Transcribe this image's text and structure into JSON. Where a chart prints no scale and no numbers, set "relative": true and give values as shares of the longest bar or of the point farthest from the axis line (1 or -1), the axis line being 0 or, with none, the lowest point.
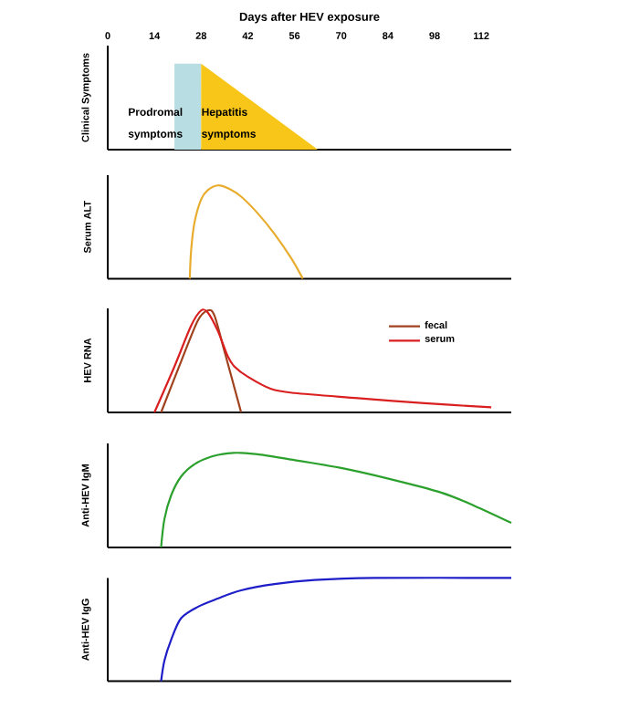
{
  "chart_data": [
    {
      "type": "area",
      "relative": true,
      "xlabel": "Days after HEV exposure",
      "ylabel": "Clinical Symptoms",
      "xlim": [
        0,
        121
      ],
      "xticks": [
        0,
        14,
        28,
        42,
        56,
        70,
        84,
        98,
        112
      ],
      "tick_labels": "x",
      "series": [
        {
          "name": "Prodromal symptoms",
          "color": "#b8dde3",
          "x": [
            20,
            20,
            28,
            28
          ],
          "values": [
            0,
            1,
            1,
            0
          ]
        },
        {
          "name": "Hepatitis symptoms",
          "color": "#f7c618",
          "x": [
            28,
            28,
            63
          ],
          "values": [
            0,
            1,
            0
          ]
        }
      ]
    },
    {
      "type": "line",
      "relative": true,
      "ylabel": "Serum ALT",
      "xlim": [
        0,
        121
      ],
      "tick_labels": false,
      "series": [
        {
          "color": "#e8ad2e",
          "x": [
            24.6,
            25,
            26,
            28,
            30,
            33,
            36,
            40,
            45,
            50,
            55,
            58.5
          ],
          "values": [
            0,
            0.3,
            0.6,
            0.85,
            0.95,
            1,
            0.97,
            0.88,
            0.7,
            0.48,
            0.22,
            0
          ]
        }
      ]
    },
    {
      "type": "line",
      "relative": true,
      "ylabel": "HEV RNA",
      "xlim": [
        0,
        121
      ],
      "tick_labels": false,
      "legend": "top right",
      "series": [
        {
          "name": "fecal",
          "color": "#a0421e",
          "x": [
            16,
            22,
            27,
            30,
            32,
            35,
            40
          ],
          "values": [
            0,
            0.5,
            0.9,
            1,
            0.95,
            0.6,
            0
          ]
        },
        {
          "name": "serum",
          "color": "#d91f1f",
          "x": [
            14,
            20,
            25,
            28,
            30,
            33,
            36,
            38,
            42,
            49,
            56,
            75,
            95,
            115
          ],
          "values": [
            0,
            0.45,
            0.85,
            1,
            0.98,
            0.8,
            0.55,
            0.45,
            0.35,
            0.23,
            0.19,
            0.14,
            0.09,
            0.05
          ]
        }
      ]
    },
    {
      "type": "line",
      "relative": true,
      "ylabel": "Anti-HEV IgM",
      "xlim": [
        0,
        121
      ],
      "tick_labels": false,
      "series": [
        {
          "color": "#2ca02c",
          "x": [
            16,
            17,
            19,
            22,
            26,
            31,
            36,
            40,
            46,
            55,
            70,
            85,
            100,
            110,
            121
          ],
          "values": [
            0,
            0.3,
            0.55,
            0.75,
            0.88,
            0.96,
            0.995,
            1,
            0.98,
            0.93,
            0.84,
            0.72,
            0.58,
            0.44,
            0.26
          ]
        }
      ]
    },
    {
      "type": "line",
      "relative": true,
      "ylabel": "Anti-HEV IgG",
      "xlim": [
        0,
        121
      ],
      "tick_labels": false,
      "series": [
        {
          "color": "#1e1ec8",
          "x": [
            16,
            17,
            19,
            22,
            27,
            33,
            40,
            50,
            62,
            80,
            121
          ],
          "values": [
            0,
            0.2,
            0.4,
            0.61,
            0.72,
            0.8,
            0.88,
            0.94,
            0.98,
            1,
            1
          ]
        }
      ]
    }
  ]
}
